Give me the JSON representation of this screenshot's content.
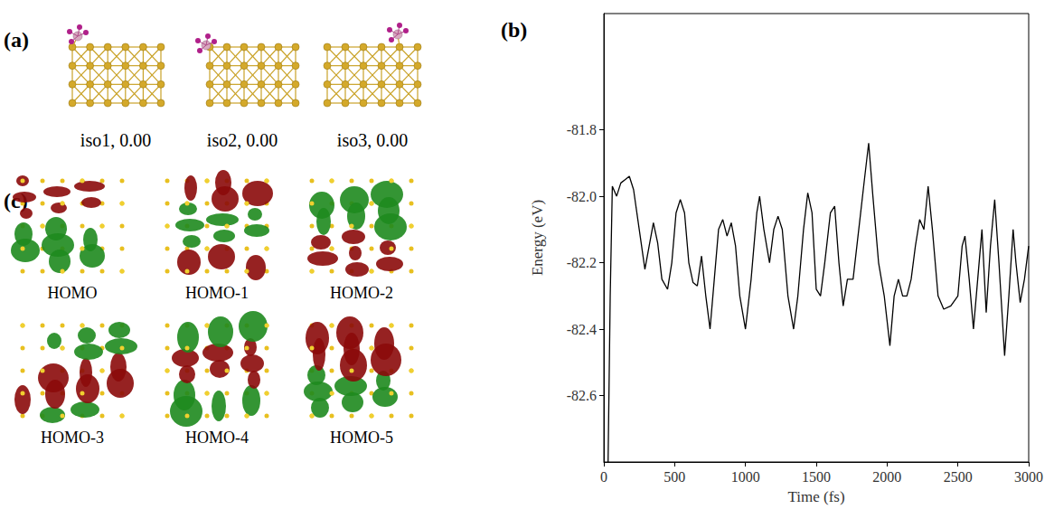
{
  "panel_a": {
    "letter": "(a)",
    "isomers": [
      "iso1, 0.00",
      "iso2, 0.00",
      "iso3, 0.00"
    ]
  },
  "panel_c": {
    "letter": "(c)",
    "orbitals": [
      "HOMO",
      "HOMO-1",
      "HOMO-2",
      "HOMO-3",
      "HOMO-4",
      "HOMO-5"
    ]
  },
  "chart_data": {
    "letter": "(b)",
    "type": "line",
    "x_label": "Time (fs)",
    "y_label": "Energy (eV)",
    "color": "#000000",
    "grid": false,
    "x": [
      30,
      45,
      60,
      90,
      120,
      150,
      180,
      210,
      250,
      290,
      320,
      350,
      380,
      410,
      450,
      480,
      510,
      540,
      570,
      600,
      630,
      660,
      690,
      720,
      750,
      780,
      810,
      840,
      870,
      900,
      930,
      960,
      1000,
      1040,
      1080,
      1100,
      1130,
      1170,
      1200,
      1230,
      1260,
      1300,
      1340,
      1370,
      1410,
      1440,
      1470,
      1500,
      1530,
      1560,
      1600,
      1630,
      1660,
      1690,
      1720,
      1760,
      1800,
      1840,
      1870,
      1900,
      1940,
      1980,
      2020,
      2050,
      2080,
      2110,
      2140,
      2170,
      2200,
      2230,
      2260,
      2290,
      2320,
      2360,
      2400,
      2450,
      2500,
      2530,
      2550,
      2580,
      2610,
      2640,
      2670,
      2700,
      2730,
      2760,
      2790,
      2830,
      2860,
      2890,
      2910,
      2940,
      2970,
      3000
    ],
    "values": [
      -82.8,
      -82.3,
      -81.97,
      -82.0,
      -81.96,
      -81.95,
      -81.94,
      -81.98,
      -82.1,
      -82.22,
      -82.15,
      -82.08,
      -82.14,
      -82.25,
      -82.28,
      -82.2,
      -82.05,
      -82.01,
      -82.05,
      -82.2,
      -82.26,
      -82.27,
      -82.18,
      -82.3,
      -82.4,
      -82.25,
      -82.1,
      -82.07,
      -82.12,
      -82.08,
      -82.15,
      -82.3,
      -82.4,
      -82.25,
      -82.05,
      -82.0,
      -82.1,
      -82.2,
      -82.1,
      -82.06,
      -82.1,
      -82.3,
      -82.4,
      -82.3,
      -82.1,
      -81.99,
      -82.05,
      -82.28,
      -82.3,
      -82.2,
      -82.05,
      -82.03,
      -82.2,
      -82.33,
      -82.25,
      -82.25,
      -82.1,
      -81.95,
      -81.84,
      -82.0,
      -82.2,
      -82.3,
      -82.45,
      -82.3,
      -82.25,
      -82.3,
      -82.3,
      -82.25,
      -82.15,
      -82.07,
      -82.1,
      -81.97,
      -82.1,
      -82.3,
      -82.34,
      -82.33,
      -82.3,
      -82.15,
      -82.12,
      -82.25,
      -82.4,
      -82.25,
      -82.1,
      -82.35,
      -82.15,
      -82.01,
      -82.2,
      -82.48,
      -82.3,
      -82.1,
      -82.2,
      -82.32,
      -82.25,
      -82.15
    ],
    "xlim": [
      0,
      3000
    ],
    "xticks": [
      0,
      500,
      1000,
      1500,
      2000,
      2500,
      3000
    ],
    "ylim": [
      -82.8,
      -81.45
    ],
    "yticks": [
      -82.6,
      -82.4,
      -82.2,
      {
        "value": -82,
        "label": "-82.0"
      },
      -81.8
    ]
  }
}
